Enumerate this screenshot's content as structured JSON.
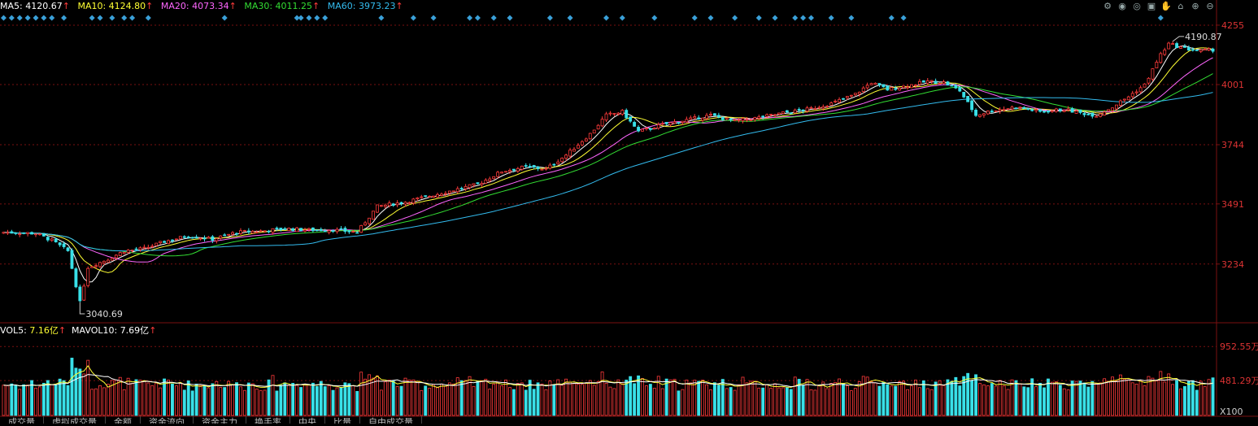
{
  "legend": {
    "ma5_label": "MA5:",
    "ma5": "4120.67",
    "ma10_label": "MA10:",
    "ma10": "4124.80",
    "ma20_label": "MA20:",
    "ma20": "4073.34",
    "ma30_label": "MA30:",
    "ma30": "4011.25",
    "ma60_label": "MA60:",
    "ma60": "3973.23",
    "arrow": "↑"
  },
  "vol_legend": {
    "mavol5_label": "VOL5:",
    "mavol5": "7.16亿",
    "mavol10_label": "MAVOL10:",
    "mavol10": "7.69亿",
    "arrow": "↑"
  },
  "toolbar_icons": [
    "gear-icon",
    "eye-icon",
    "eye-icon",
    "box-icon",
    "hand-icon",
    "lock-icon",
    "plus-icon",
    "minus-icon"
  ],
  "tabs": [
    "成交量",
    "虚拟成交量",
    "金额",
    "资金流向",
    "资金主力",
    "换手率",
    "中央",
    "比量",
    "自由成交量"
  ],
  "colors": {
    "up": "#ff3b3b",
    "down": "#39e0e8",
    "ma5": "#ffffff",
    "ma10": "#ffff33",
    "ma20": "#ff66ff",
    "ma30": "#33dd33",
    "ma60": "#33bbee",
    "signal": "#3aa0d8",
    "grid": "#7a1010",
    "axis_text": "#dd3333"
  },
  "chart_data": {
    "type": "candlestick",
    "price_ticks": [
      "4255",
      "4001",
      "3744",
      "3491",
      "3234"
    ],
    "price_range": [
      2990,
      4300
    ],
    "high_annotation": "4190.87",
    "low_annotation": "3040.69",
    "volume_ticks": [
      "952.55万",
      "481.29万"
    ],
    "volume_unit": "X100",
    "volume_range": [
      0,
      1000
    ],
    "anchors": [
      [
        0,
        3370
      ],
      [
        8,
        3365
      ],
      [
        12,
        3335
      ],
      [
        16,
        3290
      ],
      [
        19,
        3070
      ],
      [
        21,
        3220
      ],
      [
        26,
        3255
      ],
      [
        30,
        3290
      ],
      [
        35,
        3300
      ],
      [
        40,
        3330
      ],
      [
        46,
        3355
      ],
      [
        52,
        3340
      ],
      [
        58,
        3370
      ],
      [
        64,
        3375
      ],
      [
        70,
        3385
      ],
      [
        76,
        3380
      ],
      [
        82,
        3380
      ],
      [
        88,
        3370
      ],
      [
        93,
        3480
      ],
      [
        100,
        3500
      ],
      [
        106,
        3525
      ],
      [
        112,
        3550
      ],
      [
        118,
        3575
      ],
      [
        124,
        3630
      ],
      [
        130,
        3650
      ],
      [
        135,
        3640
      ],
      [
        140,
        3700
      ],
      [
        146,
        3790
      ],
      [
        150,
        3870
      ],
      [
        154,
        3885
      ],
      [
        158,
        3800
      ],
      [
        164,
        3830
      ],
      [
        170,
        3850
      ],
      [
        176,
        3870
      ],
      [
        182,
        3845
      ],
      [
        188,
        3860
      ],
      [
        194,
        3880
      ],
      [
        200,
        3895
      ],
      [
        206,
        3920
      ],
      [
        212,
        3960
      ],
      [
        216,
        4010
      ],
      [
        220,
        3980
      ],
      [
        226,
        4000
      ],
      [
        230,
        4015
      ],
      [
        234,
        4010
      ],
      [
        238,
        3975
      ],
      [
        242,
        3870
      ],
      [
        246,
        3890
      ],
      [
        252,
        3905
      ],
      [
        258,
        3885
      ],
      [
        264,
        3895
      ],
      [
        268,
        3880
      ],
      [
        272,
        3870
      ],
      [
        276,
        3905
      ],
      [
        280,
        3950
      ],
      [
        284,
        4000
      ],
      [
        288,
        4130
      ],
      [
        290,
        4175
      ],
      [
        294,
        4155
      ],
      [
        298,
        4145
      ],
      [
        301,
        4150
      ]
    ],
    "n_candles": 302,
    "signal_marker_count": 44
  }
}
